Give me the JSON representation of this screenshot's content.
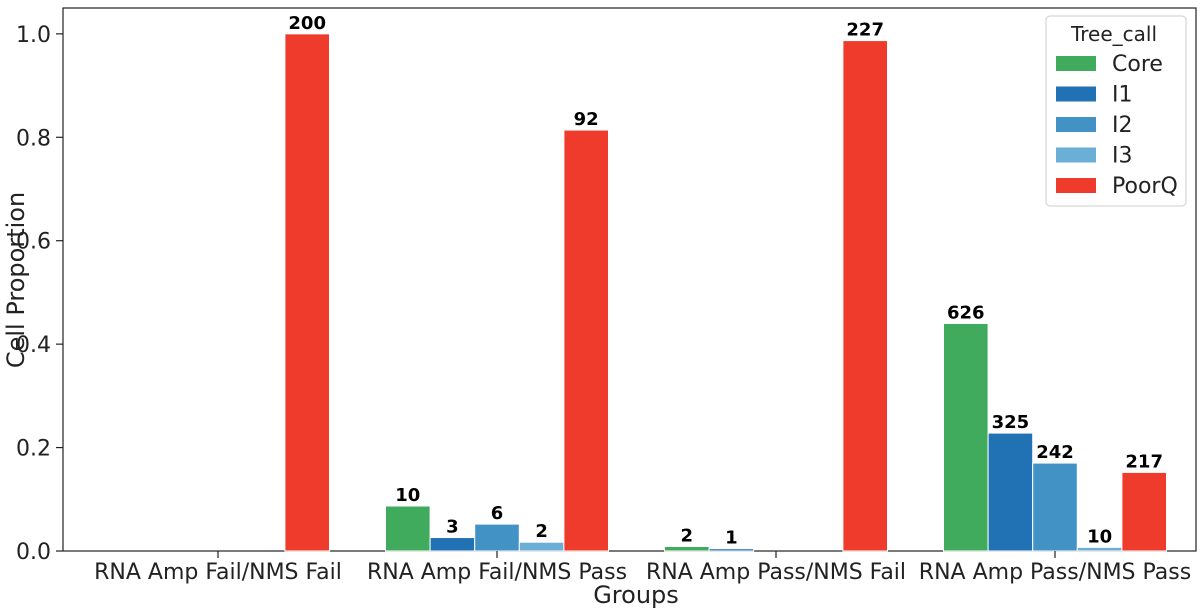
{
  "chart_data": {
    "type": "bar",
    "title": "",
    "xlabel": "Groups",
    "ylabel": "Cell Proportion",
    "ylim": [
      0,
      1.05
    ],
    "yticks": [
      "0.0",
      "0.2",
      "0.4",
      "0.6",
      "0.8",
      "1.0"
    ],
    "categories": [
      "RNA Amp Fail/NMS Fail",
      "RNA Amp Fail/NMS Pass",
      "RNA Amp Pass/NMS Fail",
      "RNA Amp Pass/NMS Pass"
    ],
    "legend": {
      "title": "Tree_call",
      "placement": "top-right"
    },
    "grid": false,
    "series": [
      {
        "name": "Core",
        "color": "#41ab5d",
        "values": [
          0,
          0.087,
          0.0087,
          0.44
        ],
        "labels": [
          "",
          "10",
          "2",
          "626"
        ]
      },
      {
        "name": "I1",
        "color": "#2171b5",
        "values": [
          0,
          0.026,
          0.0044,
          0.228
        ],
        "labels": [
          "",
          "3",
          "1",
          "325"
        ]
      },
      {
        "name": "I2",
        "color": "#4292c6",
        "values": [
          0,
          0.052,
          0,
          0.17
        ],
        "labels": [
          "",
          "6",
          "",
          "242"
        ]
      },
      {
        "name": "I3",
        "color": "#6baed6",
        "values": [
          0,
          0.017,
          0,
          0.007
        ],
        "labels": [
          "",
          "2",
          "",
          "10"
        ]
      },
      {
        "name": "PoorQ",
        "color": "#ef3b2c",
        "values": [
          1.0,
          0.814,
          0.987,
          0.152
        ],
        "labels": [
          "200",
          "92",
          "227",
          "217"
        ]
      }
    ]
  }
}
